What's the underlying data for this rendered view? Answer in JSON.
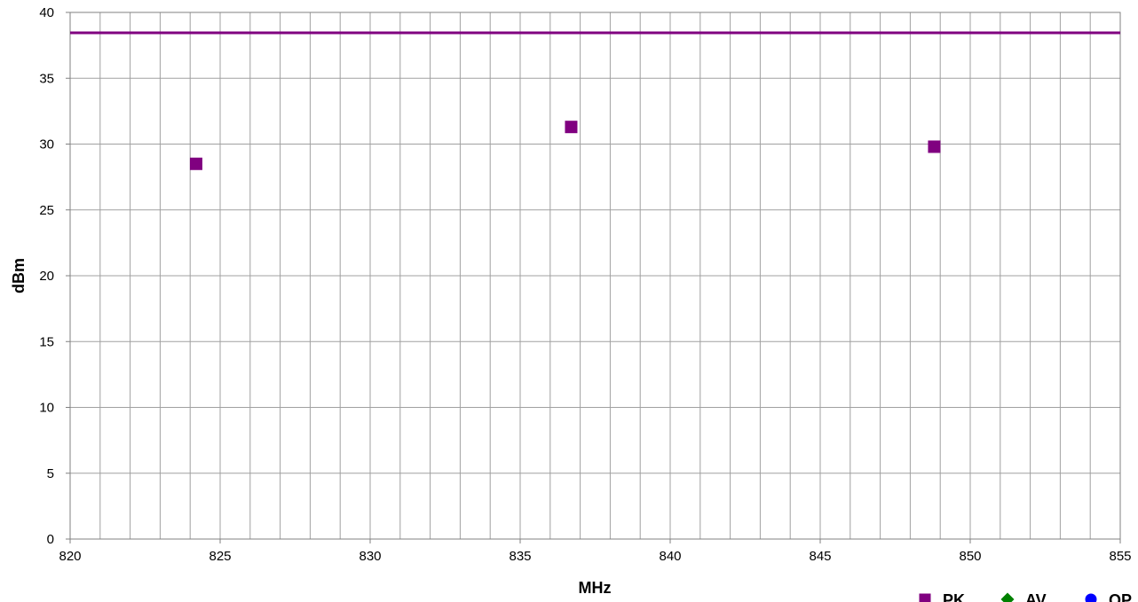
{
  "chart_data": {
    "type": "scatter",
    "title": "",
    "xlabel": "MHz",
    "ylabel": "dBm",
    "xlim": [
      820,
      855
    ],
    "ylim": [
      0,
      40
    ],
    "x_ticks": [
      820,
      825,
      830,
      835,
      840,
      845,
      850,
      855
    ],
    "y_ticks": [
      0,
      5,
      10,
      15,
      20,
      25,
      30,
      35,
      40
    ],
    "grid": true,
    "limit_line": {
      "y": 38.45,
      "color": "#800080"
    },
    "series": [
      {
        "name": "PK",
        "marker": "square",
        "color": "#800080",
        "points": [
          {
            "x": 824.2,
            "y": 28.5
          },
          {
            "x": 836.7,
            "y": 31.3
          },
          {
            "x": 848.8,
            "y": 29.8
          }
        ]
      },
      {
        "name": "AV",
        "marker": "diamond",
        "color": "#008000",
        "points": []
      },
      {
        "name": "QP",
        "marker": "circle",
        "color": "#0000ff",
        "points": []
      }
    ],
    "legend_position": "bottom-right"
  }
}
